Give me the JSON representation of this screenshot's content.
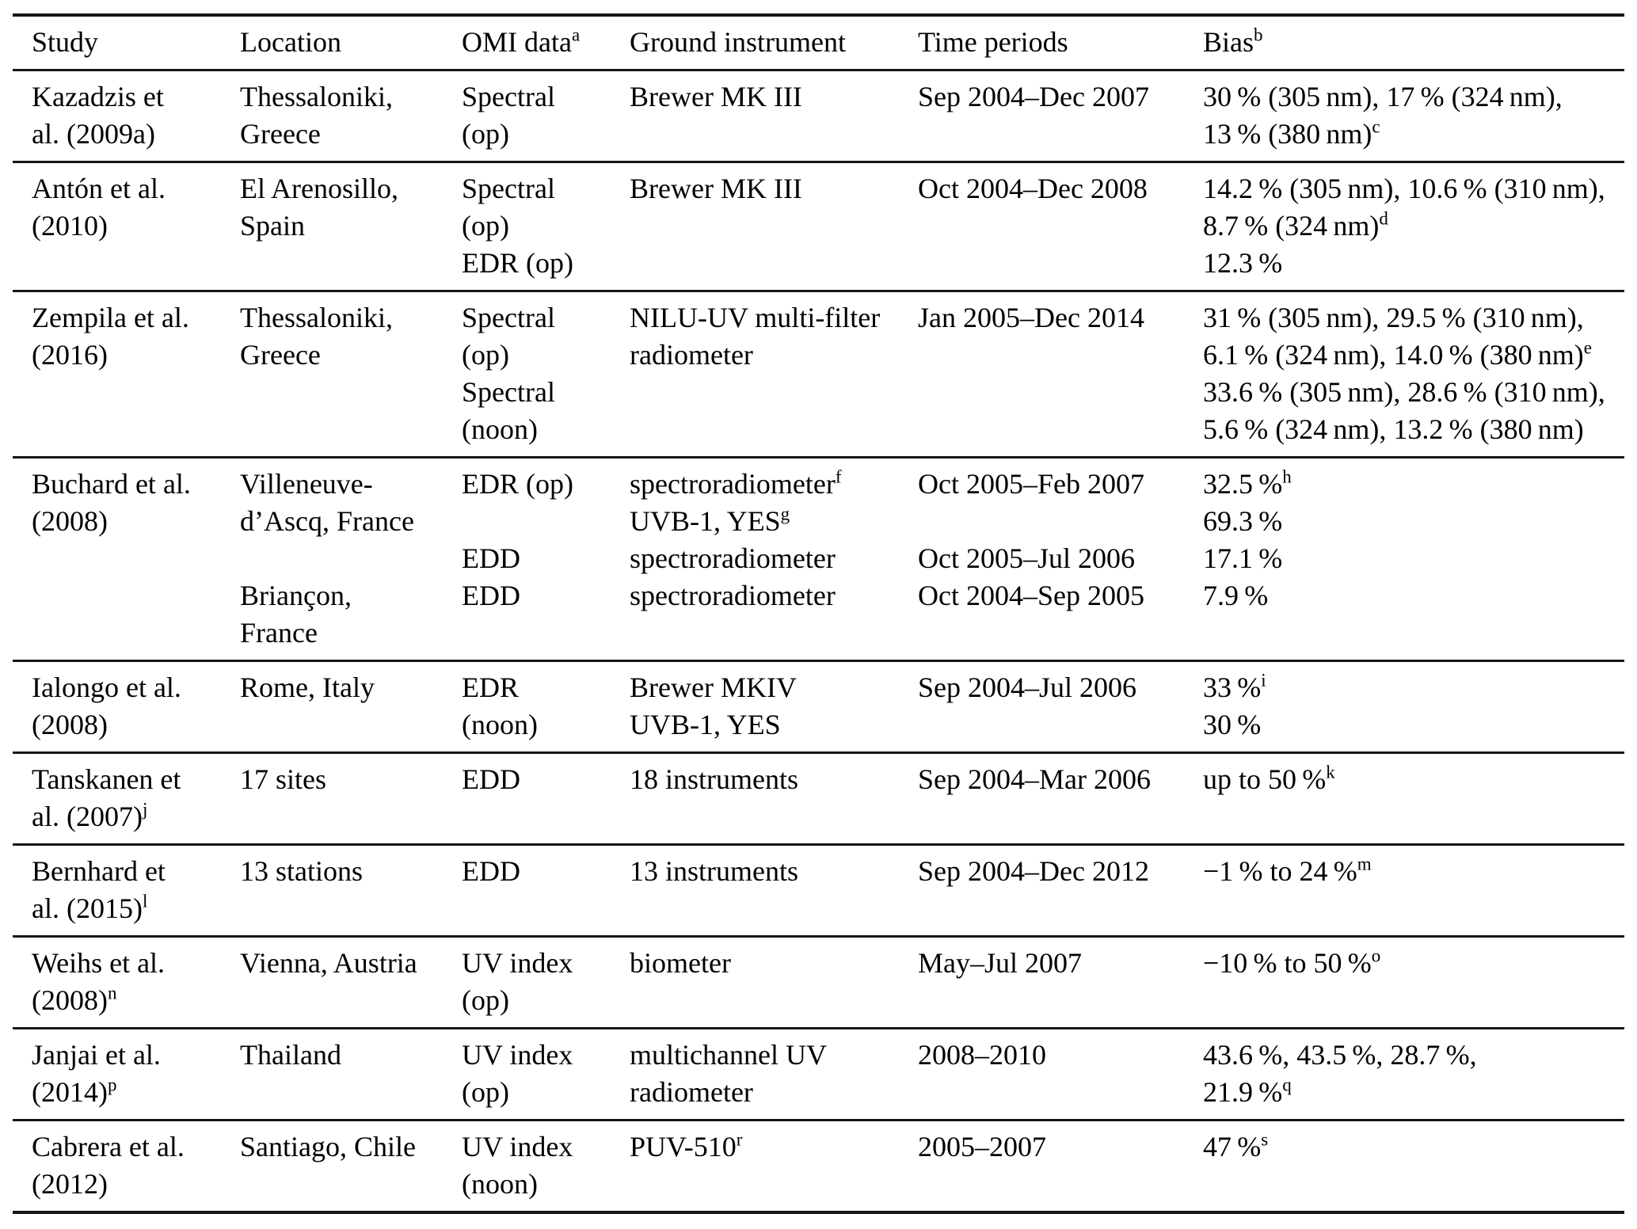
{
  "table": {
    "column_keys": [
      "study",
      "location",
      "omi_data",
      "ground_instrument",
      "time_periods",
      "bias"
    ],
    "columns": [
      "Study",
      "Location",
      "OMI data^a",
      "Ground instrument",
      "Time periods",
      "Bias^b"
    ],
    "rows": [
      {
        "study": [
          "Kazadzis et",
          "al. (2009a)"
        ],
        "location": [
          "Thessaloniki,",
          "Greece"
        ],
        "omi_data": [
          "Spectral",
          "(op)"
        ],
        "ground_instrument": [
          "Brewer MK III"
        ],
        "time_periods": [
          "Sep 2004–Dec 2007"
        ],
        "bias": [
          "30 % (305 nm), 17 % (324 nm),",
          "13 % (380 nm)^c"
        ]
      },
      {
        "study": [
          "Antón et al.",
          "(2010)"
        ],
        "location": [
          "El Arenosillo,",
          "Spain"
        ],
        "omi_data": [
          "Spectral",
          "(op)",
          "EDR (op)"
        ],
        "ground_instrument": [
          "Brewer MK III"
        ],
        "time_periods": [
          "Oct 2004–Dec 2008"
        ],
        "bias": [
          "14.2 % (305 nm), 10.6 % (310 nm),",
          "8.7 % (324 nm)^d",
          "12.3 %"
        ]
      },
      {
        "study": [
          "Zempila et al.",
          "(2016)"
        ],
        "location": [
          "Thessaloniki,",
          "Greece"
        ],
        "omi_data": [
          "Spectral",
          "(op)",
          "Spectral",
          "(noon)"
        ],
        "ground_instrument": [
          "NILU-UV multi-filter",
          "radiometer"
        ],
        "time_periods": [
          "Jan 2005–Dec 2014"
        ],
        "bias": [
          "31 % (305 nm), 29.5 % (310 nm),",
          "6.1 % (324 nm), 14.0 % (380 nm)^e",
          "33.6 % (305 nm), 28.6 % (310 nm),",
          "5.6 % (324 nm), 13.2 % (380 nm)"
        ]
      },
      {
        "study": [
          "Buchard et al.",
          "(2008)"
        ],
        "location": [
          "Villeneuve-",
          "d’Ascq, France",
          "",
          "Briançon,",
          "France"
        ],
        "omi_data": [
          "EDR (op)",
          "",
          "EDD",
          "EDD"
        ],
        "ground_instrument": [
          "spectroradiometer^f",
          "UVB-1, YES^g",
          "spectroradiometer",
          "spectroradiometer"
        ],
        "time_periods": [
          "Oct 2005–Feb 2007",
          "",
          "Oct 2005–Jul 2006",
          "Oct 2004–Sep 2005"
        ],
        "bias": [
          "32.5 %^h",
          "69.3 %",
          "17.1 %",
          "7.9 %"
        ]
      },
      {
        "study": [
          "Ialongo et al.",
          "(2008)"
        ],
        "location": [
          "Rome, Italy"
        ],
        "omi_data": [
          "EDR",
          "(noon)"
        ],
        "ground_instrument": [
          "Brewer MKIV",
          "UVB-1, YES"
        ],
        "time_periods": [
          "Sep 2004–Jul 2006"
        ],
        "bias": [
          "33 %^i",
          "30 %"
        ]
      },
      {
        "study": [
          "Tanskanen et",
          "al. (2007)^j"
        ],
        "location": [
          "17 sites"
        ],
        "omi_data": [
          "EDD"
        ],
        "ground_instrument": [
          "18 instruments"
        ],
        "time_periods": [
          "Sep 2004–Mar 2006"
        ],
        "bias": [
          "up to 50 %^k"
        ]
      },
      {
        "study": [
          "Bernhard et",
          "al. (2015)^l"
        ],
        "location": [
          "13 stations"
        ],
        "omi_data": [
          "EDD"
        ],
        "ground_instrument": [
          "13 instruments"
        ],
        "time_periods": [
          "Sep 2004–Dec 2012"
        ],
        "bias": [
          "−1 % to 24 %^m"
        ]
      },
      {
        "study": [
          "Weihs et al.",
          "(2008)^n"
        ],
        "location": [
          "Vienna, Austria"
        ],
        "omi_data": [
          "UV index",
          "(op)"
        ],
        "ground_instrument": [
          "biometer"
        ],
        "time_periods": [
          "May–Jul 2007"
        ],
        "bias": [
          "−10 % to 50 %^o"
        ]
      },
      {
        "study": [
          "Janjai et al.",
          "(2014)^p"
        ],
        "location": [
          "Thailand"
        ],
        "omi_data": [
          "UV index",
          "(op)"
        ],
        "ground_instrument": [
          "multichannel UV",
          "radiometer"
        ],
        "time_periods": [
          "2008–2010"
        ],
        "bias": [
          "43.6 %, 43.5 %, 28.7 %,",
          "21.9 %^q"
        ]
      },
      {
        "study": [
          "Cabrera et al.",
          "(2012)"
        ],
        "location": [
          "Santiago, Chile"
        ],
        "omi_data": [
          "UV index",
          "(noon)"
        ],
        "ground_instrument": [
          "PUV-510^r"
        ],
        "time_periods": [
          "2005–2007"
        ],
        "bias": [
          "47 %^s"
        ]
      }
    ]
  }
}
